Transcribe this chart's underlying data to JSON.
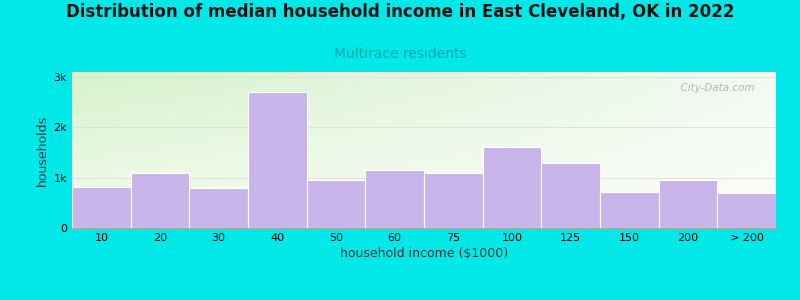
{
  "title": "Distribution of median household income in East Cleveland, OK in 2022",
  "subtitle": "Multirace residents",
  "xlabel": "household income ($1000)",
  "ylabel": "households",
  "bar_labels": [
    "10",
    "20",
    "30",
    "40",
    "50",
    "60",
    "75",
    "100",
    "125",
    "150",
    "200",
    "> 200"
  ],
  "bar_values": [
    820,
    1100,
    800,
    2700,
    950,
    1150,
    1100,
    1600,
    1300,
    720,
    950,
    700
  ],
  "bar_widths": [
    1,
    1,
    1,
    1,
    1,
    1,
    1,
    1,
    1,
    1,
    1,
    1
  ],
  "bar_lefts": [
    0,
    1,
    2,
    3,
    4,
    5,
    6,
    7,
    8,
    9,
    10,
    11
  ],
  "bar_color": "#c8b4e8",
  "bar_edgecolor": "#ffffff",
  "figure_bg": "#00e8e8",
  "ytick_labels": [
    "0",
    "1k",
    "2k",
    "3k"
  ],
  "ytick_values": [
    0,
    1000,
    2000,
    3000
  ],
  "ylim": [
    0,
    3100
  ],
  "title_fontsize": 12,
  "subtitle_fontsize": 10,
  "subtitle_color": "#00aaaa",
  "watermark": "  City-Data.com",
  "watermark_color": "#aaaaaa",
  "grid_color": "#dddddd"
}
